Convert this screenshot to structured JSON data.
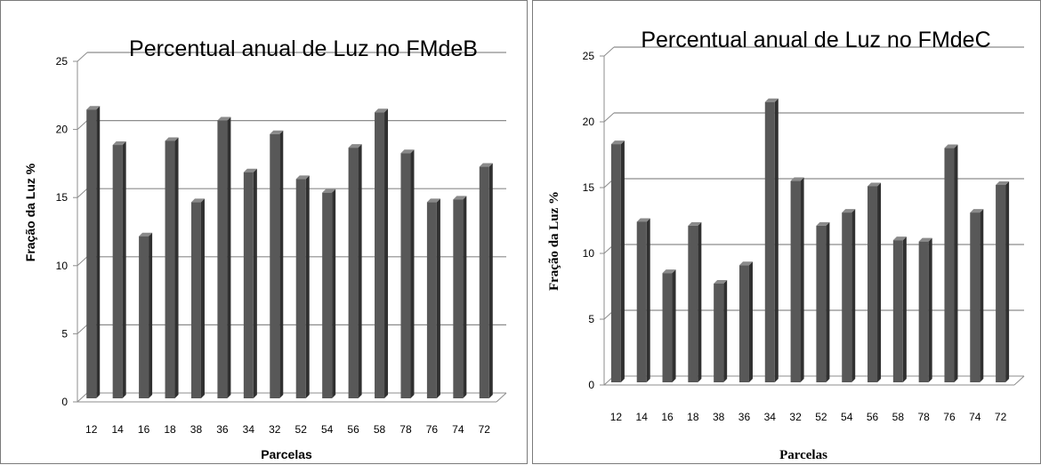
{
  "chart_data": [
    {
      "type": "bar",
      "title": "Percentual  anual de Luz no FMdeB",
      "xlabel": "Parcelas",
      "ylabel": "Fração da Luz %",
      "ylim": [
        0,
        25
      ],
      "yticks": [
        0,
        5,
        10,
        15,
        20,
        25
      ],
      "grid": true,
      "categories": [
        "12",
        "14",
        "16",
        "18",
        "38",
        "36",
        "34",
        "32",
        "52",
        "54",
        "56",
        "58",
        "78",
        "76",
        "74",
        "72"
      ],
      "values": [
        21.2,
        18.6,
        11.9,
        18.9,
        14.4,
        20.4,
        16.6,
        19.4,
        16.1,
        15.1,
        18.4,
        21.0,
        18.0,
        14.4,
        14.6,
        17.0
      ],
      "colors": {
        "bar_front": "#585858",
        "bar_side": "#303030",
        "bar_top": "#8a8a8a",
        "grid": "#8c8c8c"
      }
    },
    {
      "type": "bar",
      "title": "Percentual  anual de Luz no FMdeC",
      "xlabel": "Parcelas",
      "ylabel": "Fração da Luz %",
      "ylim": [
        0,
        25
      ],
      "yticks": [
        0,
        5,
        10,
        15,
        20,
        25
      ],
      "grid": true,
      "categories": [
        "12",
        "14",
        "16",
        "18",
        "38",
        "36",
        "34",
        "32",
        "52",
        "54",
        "56",
        "58",
        "78",
        "76",
        "74",
        "72"
      ],
      "values": [
        18.1,
        12.2,
        8.3,
        11.9,
        7.5,
        8.9,
        21.3,
        15.3,
        11.9,
        12.9,
        14.9,
        10.8,
        10.7,
        17.8,
        12.9,
        15.0
      ],
      "colors": {
        "bar_front": "#585858",
        "bar_side": "#303030",
        "bar_top": "#8a8a8a",
        "grid": "#8c8c8c"
      }
    }
  ]
}
